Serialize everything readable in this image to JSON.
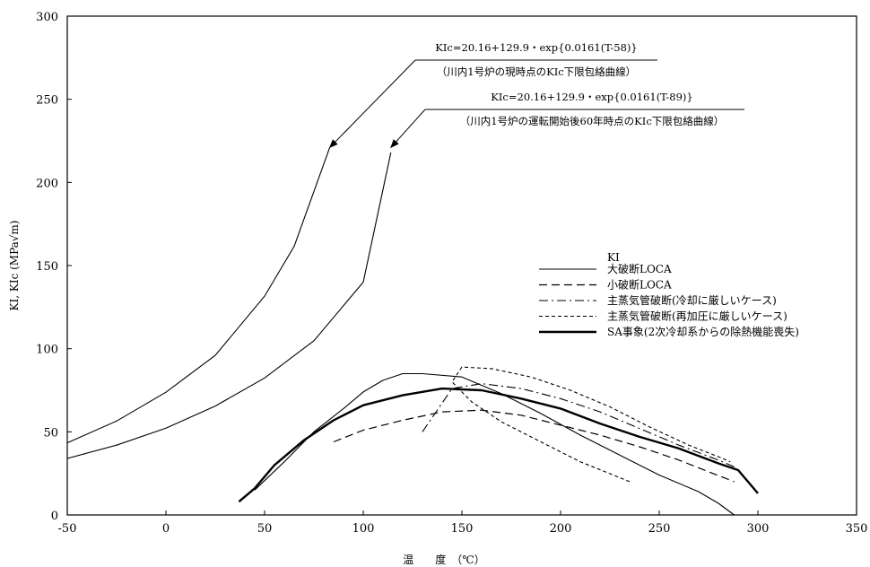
{
  "chart_data": {
    "type": "line",
    "xlabel": "温　　度　（℃）",
    "ylabel": "KI, KIc (MPa√m)",
    "xlim": [
      -50,
      350
    ],
    "ylim": [
      0,
      300
    ],
    "xticks": [
      -50,
      0,
      50,
      100,
      150,
      200,
      250,
      300,
      350
    ],
    "yticks": [
      0,
      50,
      100,
      150,
      200,
      250,
      300
    ],
    "grid": false,
    "annotations": [
      {
        "formula": "KIc=20.16+129.9・exp{0.0161(T-58)}",
        "caption": "（川内1号炉の現時点のKIc下限包絡曲線）",
        "target": [
          83,
          221
        ]
      },
      {
        "formula": "KIc=20.16+129.9・exp{0.0161(T-89)}",
        "caption": "（川内1号炉の運転開始後60年時点のKIc下限包絡曲線）",
        "target": [
          114,
          221
        ]
      }
    ],
    "envelopes": [
      {
        "name": "KIc=20.16+129.9・exp{0.0161(T-58)}",
        "x": [
          -50,
          -25,
          0,
          25,
          50,
          65,
          83
        ],
        "y": [
          43.4,
          56.5,
          73.8,
          96.0,
          131.6,
          161.6,
          221.0
        ]
      },
      {
        "name": "KIc=20.16+129.9・exp{0.0161(T-89)}",
        "x": [
          -50,
          -25,
          0,
          25,
          50,
          75,
          100,
          114
        ],
        "y": [
          34.0,
          42.0,
          52.2,
          65.5,
          82.4,
          104.8,
          140.0,
          218.0
        ]
      }
    ],
    "legend": {
      "title": "KI",
      "placement": "center-right"
    },
    "series": [
      {
        "name": "大破断LOCA",
        "style": "solid-thin",
        "x": [
          45,
          60,
          75,
          90,
          100,
          110,
          120,
          130,
          150,
          170,
          190,
          210,
          230,
          250,
          270,
          280,
          288
        ],
        "y": [
          15,
          32,
          50,
          64,
          74,
          81,
          85,
          85,
          83,
          73,
          61,
          48,
          36,
          24,
          14,
          7,
          0
        ]
      },
      {
        "name": "小破断LOCA",
        "style": "dashed",
        "x": [
          85,
          100,
          120,
          140,
          160,
          180,
          200,
          220,
          240,
          260,
          275,
          288
        ],
        "y": [
          44,
          51,
          57,
          62,
          63,
          60,
          54,
          48,
          41,
          33,
          26,
          20
        ]
      },
      {
        "name": "主蒸気管破断(冷却に厳しいケース)",
        "style": "dash-dot",
        "x": [
          130,
          145,
          160,
          180,
          200,
          220,
          240,
          260,
          280,
          288
        ],
        "y": [
          50,
          76,
          79,
          76,
          70,
          62,
          52,
          42,
          33,
          29
        ]
      },
      {
        "name": "主蒸気管破断(再加圧に厳しいケース)",
        "style": "dotted",
        "x": [
          235,
          210,
          190,
          170,
          155,
          145,
          150,
          165,
          185,
          205,
          225,
          245,
          265,
          280,
          286
        ],
        "y": [
          20,
          32,
          44,
          56,
          68,
          80,
          89,
          88,
          83,
          75,
          65,
          53,
          42,
          35,
          32
        ]
      },
      {
        "name": "SA事象(2次冷却系からの除熱機能喪失)",
        "style": "solid-thick",
        "x": [
          37,
          45,
          55,
          70,
          85,
          100,
          120,
          140,
          160,
          180,
          200,
          220,
          240,
          260,
          280,
          290,
          300
        ],
        "y": [
          8,
          16,
          30,
          45,
          57,
          66,
          72,
          76,
          75,
          70,
          64,
          55,
          47,
          40,
          31,
          27,
          13
        ]
      }
    ]
  }
}
